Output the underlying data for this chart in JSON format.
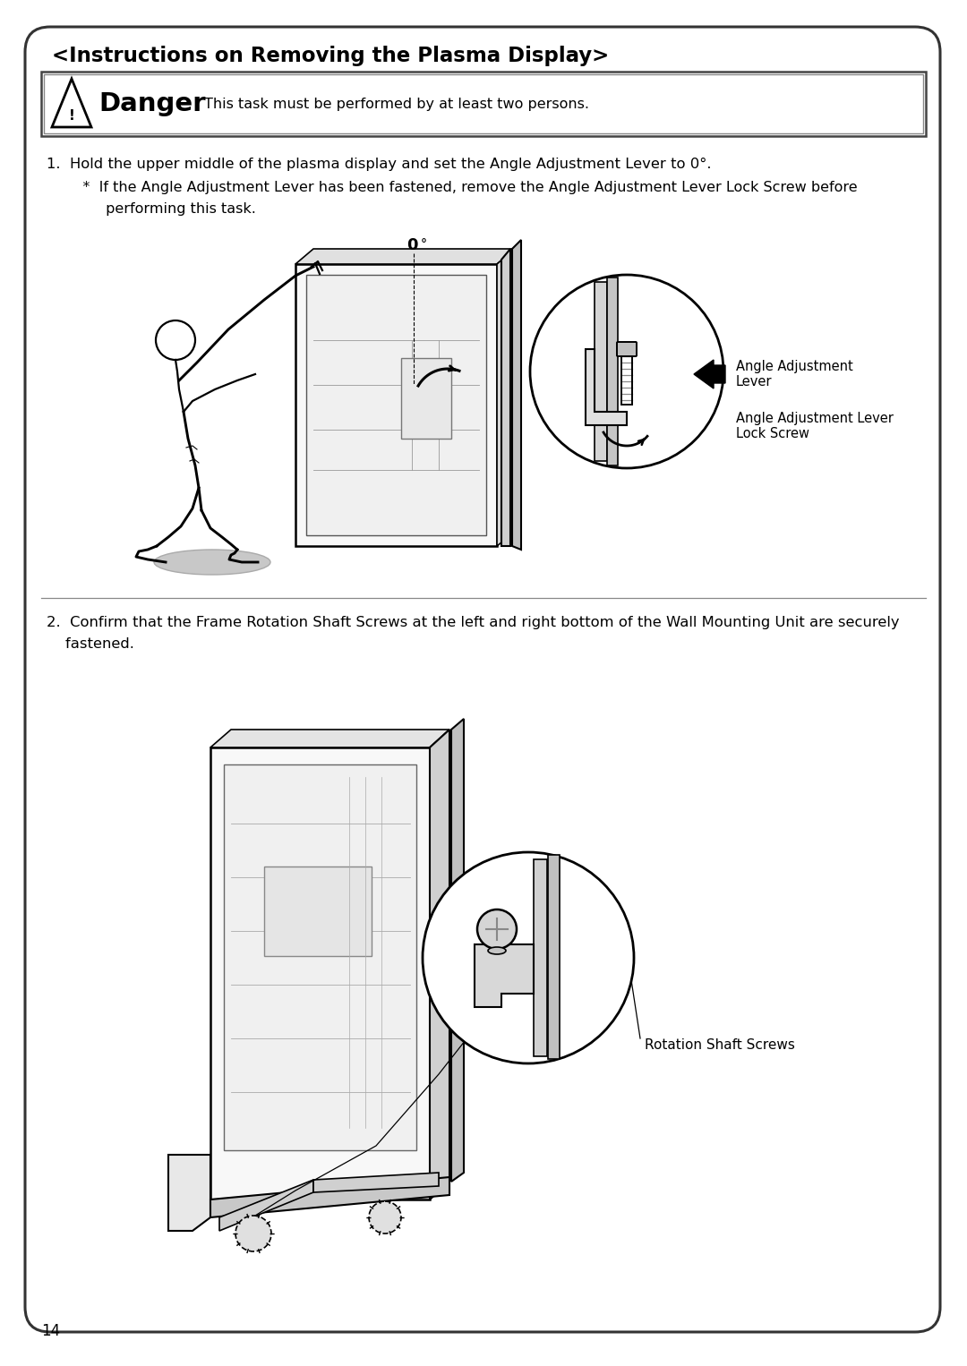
{
  "title": "<Instructions on Removing the Plasma Display>",
  "page_number": "14",
  "danger_text": "Danger",
  "danger_description": "This task must be performed by at least two persons.",
  "step1_line1": "1.  Hold the upper middle of the plasma display and set the Angle Adjustment Lever to 0°.",
  "step1_line2": "    *  If the Angle Adjustment Lever has been fastened, remove the Angle Adjustment Lever Lock Screw before",
  "step1_line3": "         performing this task.",
  "step2_line1": "2.  Confirm that the Frame Rotation Shaft Screws at the left and right bottom of the Wall Mounting Unit are securely",
  "step2_line2": "    fastened.",
  "label_angle_lever": "Angle Adjustment\nLever",
  "label_angle_screw": "Angle Adjustment Lever\nLock Screw",
  "label_rotation_screw": "Rotation Shaft Screws",
  "zero_label": "0",
  "bg_color": "#ffffff",
  "border_color": "#000000",
  "text_color": "#000000"
}
